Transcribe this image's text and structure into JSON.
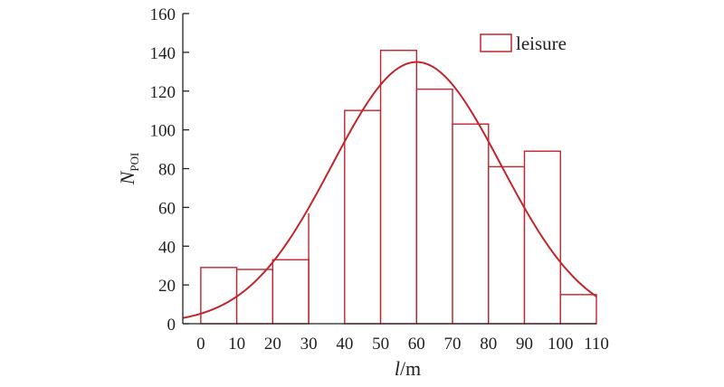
{
  "chart_data": {
    "type": "bar",
    "subtype": "histogram-with-fit",
    "title": "",
    "xlabel_italic": "l",
    "xlabel_rest": "/m",
    "ylabel_main": "N",
    "ylabel_sub": "POI",
    "xlim": [
      -5,
      110
    ],
    "ylim": [
      0,
      160
    ],
    "xticks": [
      0,
      10,
      20,
      30,
      40,
      50,
      60,
      70,
      80,
      90,
      100,
      110
    ],
    "yticks": [
      0,
      20,
      40,
      60,
      80,
      100,
      120,
      140,
      160
    ],
    "bins": [
      {
        "x0": 0,
        "x1": 10,
        "value": 29
      },
      {
        "x0": 10,
        "x1": 20,
        "value": 28
      },
      {
        "x0": 20,
        "x1": 30,
        "value": 33
      },
      {
        "x0": 30,
        "x1": 40,
        "value": 0
      },
      {
        "x0": 40,
        "x1": 50,
        "value": 110
      },
      {
        "x0": 50,
        "x1": 60,
        "value": 141
      },
      {
        "x0": 60,
        "x1": 70,
        "value": 121
      },
      {
        "x0": 70,
        "x1": 80,
        "value": 103
      },
      {
        "x0": 80,
        "x1": 90,
        "value": 81
      },
      {
        "x0": 90,
        "x1": 100,
        "value": 89
      },
      {
        "x0": 100,
        "x1": 110,
        "value": 15
      }
    ],
    "stray_edges": [
      {
        "x": 30,
        "top": 57
      }
    ],
    "fit_curve": {
      "type": "gaussian",
      "amplitude": 135,
      "mean": 60,
      "sigma": 23.5,
      "x_start": -5,
      "x_end": 110
    },
    "series": [
      {
        "name": "leisure",
        "color": "#c0262c"
      }
    ],
    "legend_position": "top-right",
    "grid": false
  }
}
